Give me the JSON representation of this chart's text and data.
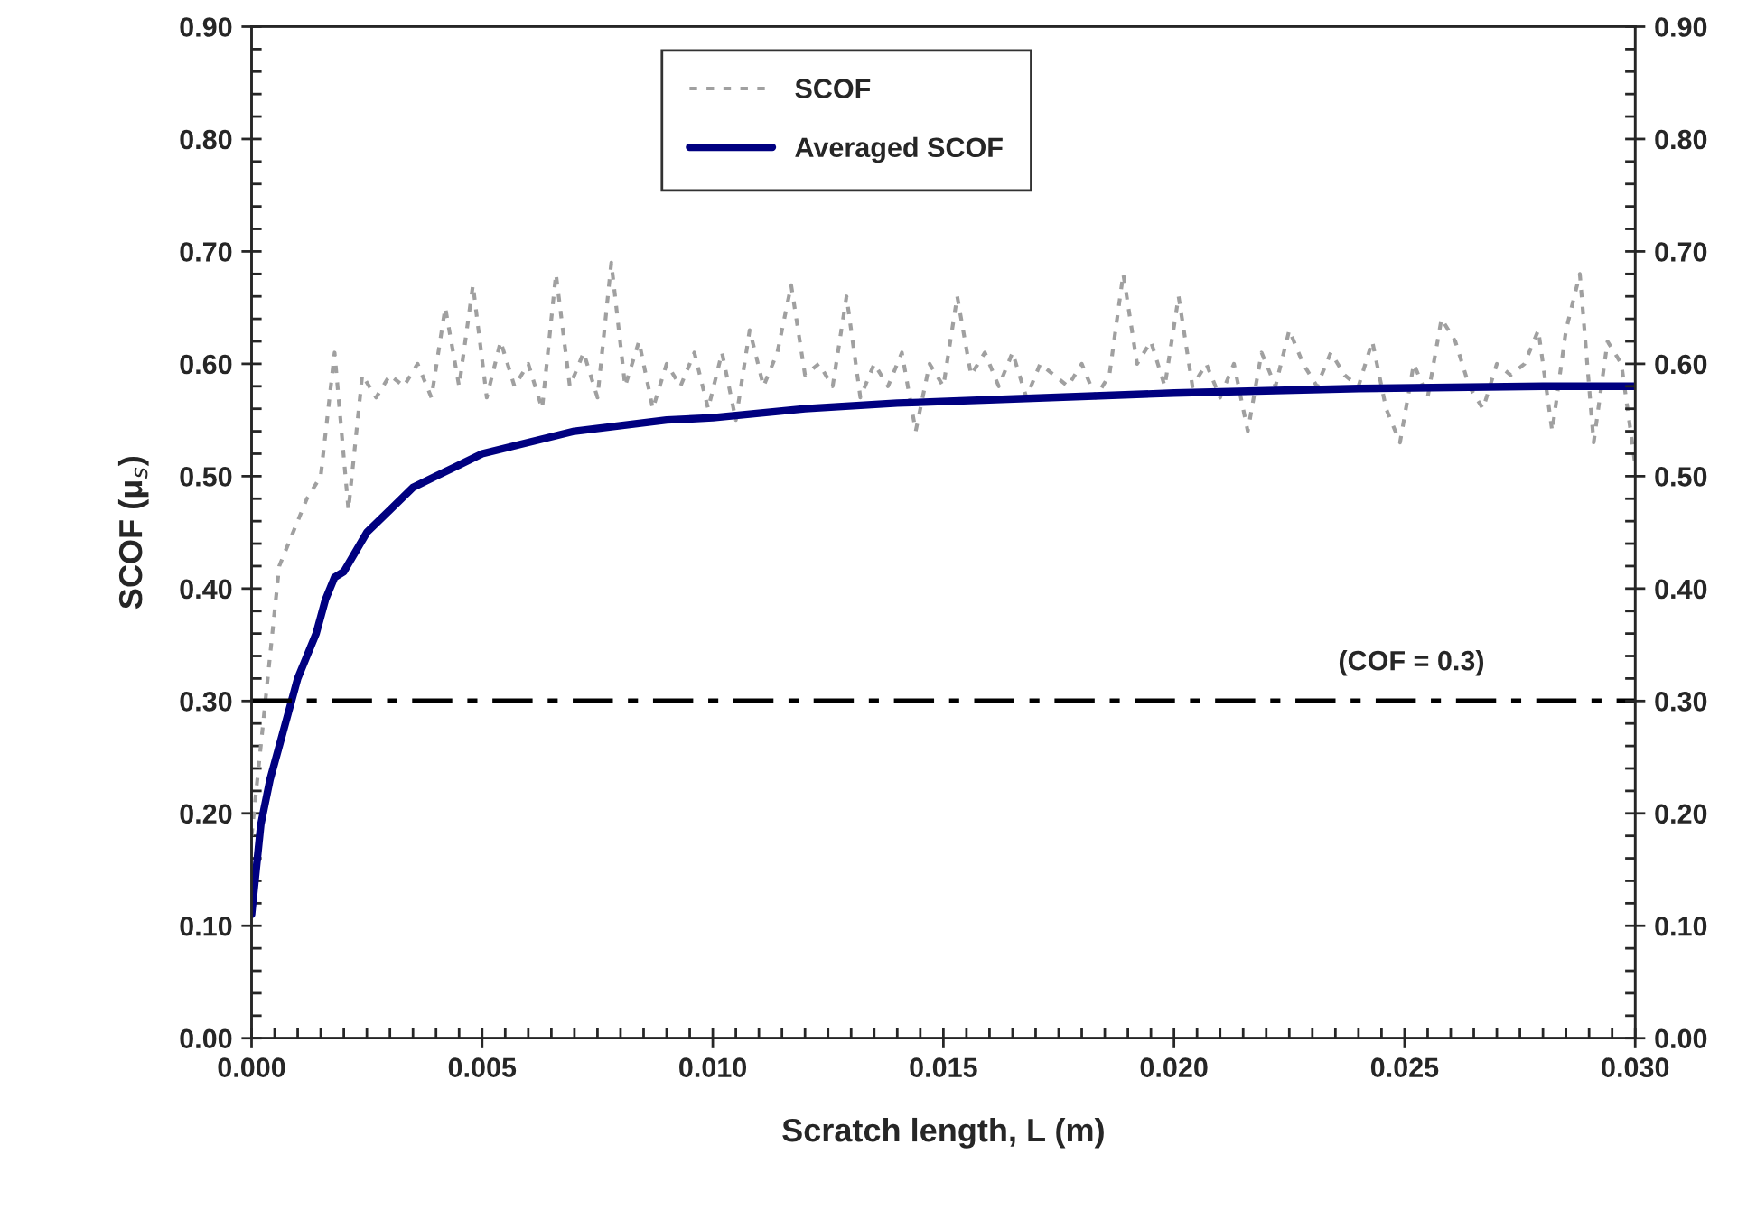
{
  "chart_data": {
    "type": "line",
    "xlabel": "Scratch length, L (m)",
    "ylabel": "SCOF (μ$_{s}$)",
    "xlim": [
      0,
      0.03
    ],
    "ylim": [
      0,
      0.9
    ],
    "xticks": [
      {
        "value": 0,
        "label": "0.000"
      },
      {
        "value": 0.005,
        "label": "0.005"
      },
      {
        "value": 0.01,
        "label": "0.010"
      },
      {
        "value": 0.015,
        "label": "0.015"
      },
      {
        "value": 0.02,
        "label": "0.020"
      },
      {
        "value": 0.025,
        "label": "0.025"
      },
      {
        "value": 0.03,
        "label": "0.030"
      }
    ],
    "yticks": [
      {
        "value": 0,
        "label": "0.00"
      },
      {
        "value": 0.1,
        "label": "0.10"
      },
      {
        "value": 0.2,
        "label": "0.20"
      },
      {
        "value": 0.3,
        "label": "0.30"
      },
      {
        "value": 0.4,
        "label": "0.40"
      },
      {
        "value": 0.5,
        "label": "0.50"
      },
      {
        "value": 0.6,
        "label": "0.60"
      },
      {
        "value": 0.7,
        "label": "0.70"
      },
      {
        "value": 0.8,
        "label": "0.80"
      },
      {
        "value": 0.9,
        "label": "0.90"
      }
    ],
    "y2lim": [
      0,
      0.9
    ],
    "y2ticks": [
      {
        "value": 0,
        "label": "0.00"
      },
      {
        "value": 0.1,
        "label": "0.10"
      },
      {
        "value": 0.2,
        "label": "0.20"
      },
      {
        "value": 0.3,
        "label": "0.30"
      },
      {
        "value": 0.4,
        "label": "0.40"
      },
      {
        "value": 0.5,
        "label": "0.50"
      },
      {
        "value": 0.6,
        "label": "0.60"
      },
      {
        "value": 0.7,
        "label": "0.70"
      },
      {
        "value": 0.8,
        "label": "0.80"
      },
      {
        "value": 0.9,
        "label": "0.90"
      }
    ],
    "grid": false,
    "legend": "top",
    "marker": "none",
    "ref_lines": [
      {
        "axis": "y",
        "value": 0.3,
        "label": "(COF = 0.3)",
        "color": "#000000",
        "line_style": "dashdot"
      }
    ],
    "series": [
      {
        "name": "SCOF",
        "color": "#a0a0a0",
        "line_style": "dashed",
        "x": [
          0,
          0.0003,
          0.0006,
          0.0009,
          0.0012,
          0.0015,
          0.0018,
          0.0021,
          0.0024,
          0.0027,
          0.003,
          0.0033,
          0.0036,
          0.0039,
          0.0042,
          0.0045,
          0.0048,
          0.0051,
          0.0054,
          0.0057,
          0.006,
          0.0063,
          0.0066,
          0.0069,
          0.0072,
          0.0075,
          0.0078,
          0.0081,
          0.0084,
          0.0087,
          0.009,
          0.0093,
          0.0096,
          0.0099,
          0.0102,
          0.0105,
          0.0108,
          0.0111,
          0.0114,
          0.0117,
          0.012,
          0.0123,
          0.0126,
          0.0129,
          0.0132,
          0.0135,
          0.0138,
          0.0141,
          0.0144,
          0.0147,
          0.015,
          0.0153,
          0.0156,
          0.0159,
          0.0162,
          0.0165,
          0.0168,
          0.0171,
          0.0174,
          0.0177,
          0.018,
          0.0183,
          0.0186,
          0.0189,
          0.0192,
          0.0195,
          0.0198,
          0.0201,
          0.0204,
          0.0207,
          0.021,
          0.0213,
          0.0216,
          0.0219,
          0.0222,
          0.0225,
          0.0228,
          0.0231,
          0.0234,
          0.0237,
          0.024,
          0.0243,
          0.0246,
          0.0249,
          0.0252,
          0.0255,
          0.0258,
          0.0261,
          0.0264,
          0.0267,
          0.027,
          0.0273,
          0.0276,
          0.0279,
          0.0282,
          0.0285,
          0.0288,
          0.0291,
          0.0294,
          0.0297,
          0.03
        ],
        "values": [
          0.18,
          0.3,
          0.42,
          0.45,
          0.48,
          0.5,
          0.61,
          0.47,
          0.59,
          0.57,
          0.59,
          0.58,
          0.6,
          0.57,
          0.65,
          0.58,
          0.67,
          0.57,
          0.62,
          0.58,
          0.6,
          0.56,
          0.68,
          0.58,
          0.61,
          0.57,
          0.69,
          0.58,
          0.62,
          0.56,
          0.6,
          0.58,
          0.61,
          0.56,
          0.61,
          0.55,
          0.63,
          0.58,
          0.61,
          0.67,
          0.59,
          0.6,
          0.58,
          0.66,
          0.57,
          0.6,
          0.58,
          0.61,
          0.54,
          0.6,
          0.58,
          0.66,
          0.59,
          0.61,
          0.58,
          0.61,
          0.57,
          0.6,
          0.59,
          0.58,
          0.6,
          0.57,
          0.59,
          0.68,
          0.6,
          0.62,
          0.58,
          0.66,
          0.58,
          0.6,
          0.57,
          0.6,
          0.54,
          0.61,
          0.58,
          0.63,
          0.6,
          0.58,
          0.61,
          0.59,
          0.58,
          0.62,
          0.56,
          0.53,
          0.6,
          0.57,
          0.64,
          0.62,
          0.58,
          0.56,
          0.6,
          0.59,
          0.6,
          0.63,
          0.54,
          0.63,
          0.68,
          0.53,
          0.62,
          0.6,
          0.51
        ]
      },
      {
        "name": "Averaged SCOF",
        "color": "#000080",
        "line_style": "solid",
        "x": [
          0,
          0.0002,
          0.0004,
          0.0006,
          0.0008,
          0.001,
          0.0012,
          0.0014,
          0.0016,
          0.0018,
          0.002,
          0.0025,
          0.003,
          0.0035,
          0.004,
          0.0045,
          0.005,
          0.006,
          0.007,
          0.008,
          0.009,
          0.01,
          0.012,
          0.014,
          0.016,
          0.018,
          0.02,
          0.022,
          0.024,
          0.026,
          0.028,
          0.03
        ],
        "values": [
          0.11,
          0.19,
          0.23,
          0.26,
          0.29,
          0.32,
          0.34,
          0.36,
          0.39,
          0.41,
          0.415,
          0.45,
          0.47,
          0.49,
          0.5,
          0.51,
          0.52,
          0.53,
          0.54,
          0.545,
          0.55,
          0.552,
          0.56,
          0.565,
          0.568,
          0.571,
          0.574,
          0.576,
          0.578,
          0.579,
          0.58,
          0.58
        ]
      }
    ]
  }
}
